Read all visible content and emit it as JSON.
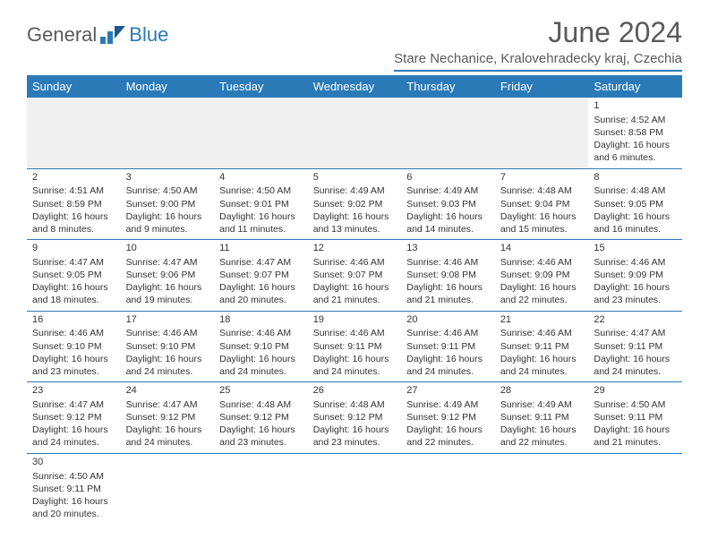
{
  "logo": {
    "part1": "General",
    "part2": "Blue"
  },
  "title": "June 2024",
  "location": "Stare Nechanice, Kralovehradecky kraj, Czechia",
  "colors": {
    "accent": "#2a7ab8",
    "headerText": "#ffffff",
    "bodyText": "#333333",
    "titleText": "#5a5a5a",
    "emptyBg": "#f0f0f0"
  },
  "dayHeaders": [
    "Sunday",
    "Monday",
    "Tuesday",
    "Wednesday",
    "Thursday",
    "Friday",
    "Saturday"
  ],
  "weeks": [
    [
      null,
      null,
      null,
      null,
      null,
      null,
      {
        "n": "1",
        "sr": "Sunrise: 4:52 AM",
        "ss": "Sunset: 8:58 PM",
        "d1": "Daylight: 16 hours",
        "d2": "and 6 minutes."
      }
    ],
    [
      {
        "n": "2",
        "sr": "Sunrise: 4:51 AM",
        "ss": "Sunset: 8:59 PM",
        "d1": "Daylight: 16 hours",
        "d2": "and 8 minutes."
      },
      {
        "n": "3",
        "sr": "Sunrise: 4:50 AM",
        "ss": "Sunset: 9:00 PM",
        "d1": "Daylight: 16 hours",
        "d2": "and 9 minutes."
      },
      {
        "n": "4",
        "sr": "Sunrise: 4:50 AM",
        "ss": "Sunset: 9:01 PM",
        "d1": "Daylight: 16 hours",
        "d2": "and 11 minutes."
      },
      {
        "n": "5",
        "sr": "Sunrise: 4:49 AM",
        "ss": "Sunset: 9:02 PM",
        "d1": "Daylight: 16 hours",
        "d2": "and 13 minutes."
      },
      {
        "n": "6",
        "sr": "Sunrise: 4:49 AM",
        "ss": "Sunset: 9:03 PM",
        "d1": "Daylight: 16 hours",
        "d2": "and 14 minutes."
      },
      {
        "n": "7",
        "sr": "Sunrise: 4:48 AM",
        "ss": "Sunset: 9:04 PM",
        "d1": "Daylight: 16 hours",
        "d2": "and 15 minutes."
      },
      {
        "n": "8",
        "sr": "Sunrise: 4:48 AM",
        "ss": "Sunset: 9:05 PM",
        "d1": "Daylight: 16 hours",
        "d2": "and 16 minutes."
      }
    ],
    [
      {
        "n": "9",
        "sr": "Sunrise: 4:47 AM",
        "ss": "Sunset: 9:05 PM",
        "d1": "Daylight: 16 hours",
        "d2": "and 18 minutes."
      },
      {
        "n": "10",
        "sr": "Sunrise: 4:47 AM",
        "ss": "Sunset: 9:06 PM",
        "d1": "Daylight: 16 hours",
        "d2": "and 19 minutes."
      },
      {
        "n": "11",
        "sr": "Sunrise: 4:47 AM",
        "ss": "Sunset: 9:07 PM",
        "d1": "Daylight: 16 hours",
        "d2": "and 20 minutes."
      },
      {
        "n": "12",
        "sr": "Sunrise: 4:46 AM",
        "ss": "Sunset: 9:07 PM",
        "d1": "Daylight: 16 hours",
        "d2": "and 21 minutes."
      },
      {
        "n": "13",
        "sr": "Sunrise: 4:46 AM",
        "ss": "Sunset: 9:08 PM",
        "d1": "Daylight: 16 hours",
        "d2": "and 21 minutes."
      },
      {
        "n": "14",
        "sr": "Sunrise: 4:46 AM",
        "ss": "Sunset: 9:09 PM",
        "d1": "Daylight: 16 hours",
        "d2": "and 22 minutes."
      },
      {
        "n": "15",
        "sr": "Sunrise: 4:46 AM",
        "ss": "Sunset: 9:09 PM",
        "d1": "Daylight: 16 hours",
        "d2": "and 23 minutes."
      }
    ],
    [
      {
        "n": "16",
        "sr": "Sunrise: 4:46 AM",
        "ss": "Sunset: 9:10 PM",
        "d1": "Daylight: 16 hours",
        "d2": "and 23 minutes."
      },
      {
        "n": "17",
        "sr": "Sunrise: 4:46 AM",
        "ss": "Sunset: 9:10 PM",
        "d1": "Daylight: 16 hours",
        "d2": "and 24 minutes."
      },
      {
        "n": "18",
        "sr": "Sunrise: 4:46 AM",
        "ss": "Sunset: 9:10 PM",
        "d1": "Daylight: 16 hours",
        "d2": "and 24 minutes."
      },
      {
        "n": "19",
        "sr": "Sunrise: 4:46 AM",
        "ss": "Sunset: 9:11 PM",
        "d1": "Daylight: 16 hours",
        "d2": "and 24 minutes."
      },
      {
        "n": "20",
        "sr": "Sunrise: 4:46 AM",
        "ss": "Sunset: 9:11 PM",
        "d1": "Daylight: 16 hours",
        "d2": "and 24 minutes."
      },
      {
        "n": "21",
        "sr": "Sunrise: 4:46 AM",
        "ss": "Sunset: 9:11 PM",
        "d1": "Daylight: 16 hours",
        "d2": "and 24 minutes."
      },
      {
        "n": "22",
        "sr": "Sunrise: 4:47 AM",
        "ss": "Sunset: 9:11 PM",
        "d1": "Daylight: 16 hours",
        "d2": "and 24 minutes."
      }
    ],
    [
      {
        "n": "23",
        "sr": "Sunrise: 4:47 AM",
        "ss": "Sunset: 9:12 PM",
        "d1": "Daylight: 16 hours",
        "d2": "and 24 minutes."
      },
      {
        "n": "24",
        "sr": "Sunrise: 4:47 AM",
        "ss": "Sunset: 9:12 PM",
        "d1": "Daylight: 16 hours",
        "d2": "and 24 minutes."
      },
      {
        "n": "25",
        "sr": "Sunrise: 4:48 AM",
        "ss": "Sunset: 9:12 PM",
        "d1": "Daylight: 16 hours",
        "d2": "and 23 minutes."
      },
      {
        "n": "26",
        "sr": "Sunrise: 4:48 AM",
        "ss": "Sunset: 9:12 PM",
        "d1": "Daylight: 16 hours",
        "d2": "and 23 minutes."
      },
      {
        "n": "27",
        "sr": "Sunrise: 4:49 AM",
        "ss": "Sunset: 9:12 PM",
        "d1": "Daylight: 16 hours",
        "d2": "and 22 minutes."
      },
      {
        "n": "28",
        "sr": "Sunrise: 4:49 AM",
        "ss": "Sunset: 9:11 PM",
        "d1": "Daylight: 16 hours",
        "d2": "and 22 minutes."
      },
      {
        "n": "29",
        "sr": "Sunrise: 4:50 AM",
        "ss": "Sunset: 9:11 PM",
        "d1": "Daylight: 16 hours",
        "d2": "and 21 minutes."
      }
    ],
    [
      {
        "n": "30",
        "sr": "Sunrise: 4:50 AM",
        "ss": "Sunset: 9:11 PM",
        "d1": "Daylight: 16 hours",
        "d2": "and 20 minutes."
      },
      null,
      null,
      null,
      null,
      null,
      null
    ]
  ]
}
